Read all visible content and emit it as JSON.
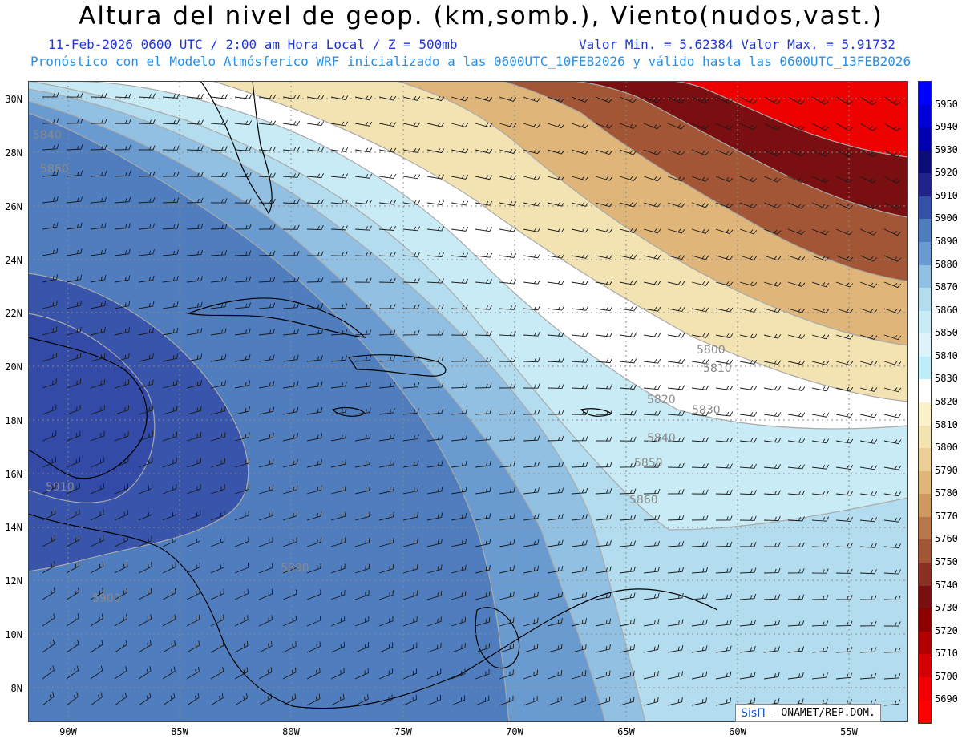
{
  "title": "Altura del nivel de geop. (km,somb.), Viento(nudos,vast.)",
  "subtitle_left": "11-Feb-2026  0600 UTC / 2:00 am Hora Local / Z = 500mb",
  "subtitle_minmax": "Valor Min. = 5.62384  Valor Max. = 5.91732",
  "forecast_line": "Pronóstico con el Modelo Atmósferico WRF inicializado a las 0600UTC_10FEB2026 y válido hasta las  0600UTC_13FEB2026",
  "lat_labels": [
    "30N",
    "28N",
    "26N",
    "24N",
    "22N",
    "20N",
    "18N",
    "16N",
    "14N",
    "12N",
    "10N",
    "8N"
  ],
  "lon_labels": [
    "90W",
    "85W",
    "80W",
    "75W",
    "70W",
    "65W",
    "60W",
    "55W"
  ],
  "colorbar": {
    "levels": [
      "5950",
      "5940",
      "5930",
      "5920",
      "5910",
      "5900",
      "5890",
      "5880",
      "5870",
      "5860",
      "5850",
      "5840",
      "5830",
      "5820",
      "5810",
      "5800",
      "5790",
      "5780",
      "5770",
      "5760",
      "5750",
      "5740",
      "5730",
      "5720",
      "5710",
      "5700",
      "5690"
    ],
    "colors": [
      "#0000ff",
      "#0000d6",
      "#0000b0",
      "#0c0c7a",
      "#22228c",
      "#3550a8",
      "#4f7dbe",
      "#6a9bd0",
      "#92c0e2",
      "#b3dcee",
      "#c9ebf5",
      "#ddf3fa",
      "#bfeef8",
      "#ffffff",
      "#fbf2cc",
      "#f3e2b2",
      "#eccf97",
      "#dfb57a",
      "#cd9961",
      "#b7794a",
      "#a25636",
      "#8b2f25",
      "#7a0f12",
      "#8c0000",
      "#b20000",
      "#d20000",
      "#f00000",
      "#ff0000"
    ]
  },
  "contour_labels": [
    "5860",
    "5840",
    "5910",
    "5900",
    "5890",
    "5800",
    "5810",
    "5820",
    "5830",
    "5840",
    "5850",
    "5860"
  ],
  "logo": {
    "brand": "SisΠ",
    "org": "– ONAMET/REP.DOM."
  },
  "icons": {
    "wind": "wind-barb-icon"
  }
}
